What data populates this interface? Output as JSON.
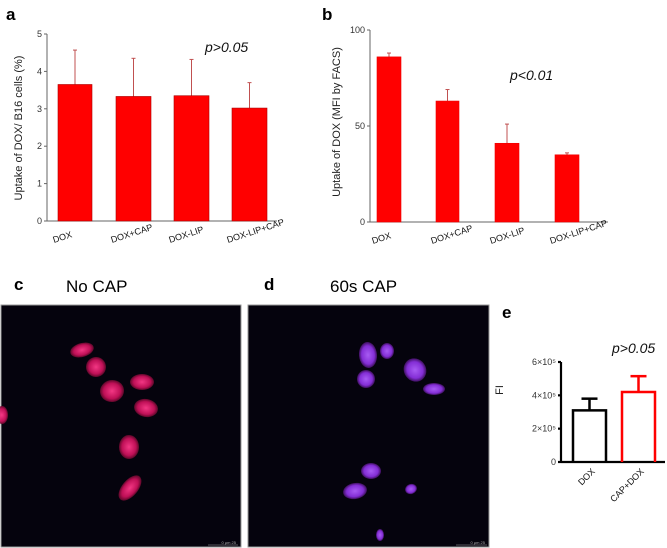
{
  "panels": {
    "a": "a",
    "b": "b",
    "c": "c",
    "d": "d",
    "e": "e"
  },
  "colors": {
    "bar_red": "#ff0000",
    "err_red": "#c05050",
    "nucleus_c": "#c8105a",
    "nucleus_d": "#8a30e0"
  },
  "micrographs": {
    "c": {
      "title": "No CAP",
      "scale_bar": "0    μm    25"
    },
    "d": {
      "title": "60s CAP",
      "scale_bar": "0    μm    25"
    }
  },
  "chart_data": [
    {
      "id": "a",
      "type": "bar",
      "categories": [
        "DOX",
        "DOX+CAP",
        "DOX-LIP",
        "DOX-LIP+CAP"
      ],
      "values": [
        3.65,
        3.33,
        3.35,
        3.02
      ],
      "error_upper": [
        4.57,
        4.35,
        4.32,
        3.7
      ],
      "ylabel": "Uptake of DOX/ B16 cells  (%)",
      "ylim": [
        0,
        5
      ],
      "yticks": [
        "0",
        "1",
        "2",
        "3",
        "4",
        "5"
      ],
      "annotation": "p>0.05"
    },
    {
      "id": "b",
      "type": "bar",
      "categories": [
        "DOX",
        "DOX+CAP",
        "DOX-LIP",
        "DOX-LIP+CAP"
      ],
      "values": [
        86,
        63,
        41,
        35
      ],
      "error_upper": [
        88,
        69,
        51,
        36
      ],
      "ylabel": "Uptake of DOX  (MFI by FACS)",
      "ylim": [
        0,
        100
      ],
      "yticks": [
        "0",
        "50",
        "100"
      ],
      "annotation": "p<0.01"
    },
    {
      "id": "e",
      "type": "bar",
      "categories": [
        "DOX",
        "CAP+DOX"
      ],
      "values": [
        310000,
        420000
      ],
      "error_upper": [
        380000,
        515000
      ],
      "ylabel": "FI",
      "ylim": [
        0,
        600000
      ],
      "yticks": [
        "0",
        "2×10⁵",
        "4×10⁵",
        "6×10⁵"
      ],
      "annotation": "p>0.05"
    }
  ]
}
